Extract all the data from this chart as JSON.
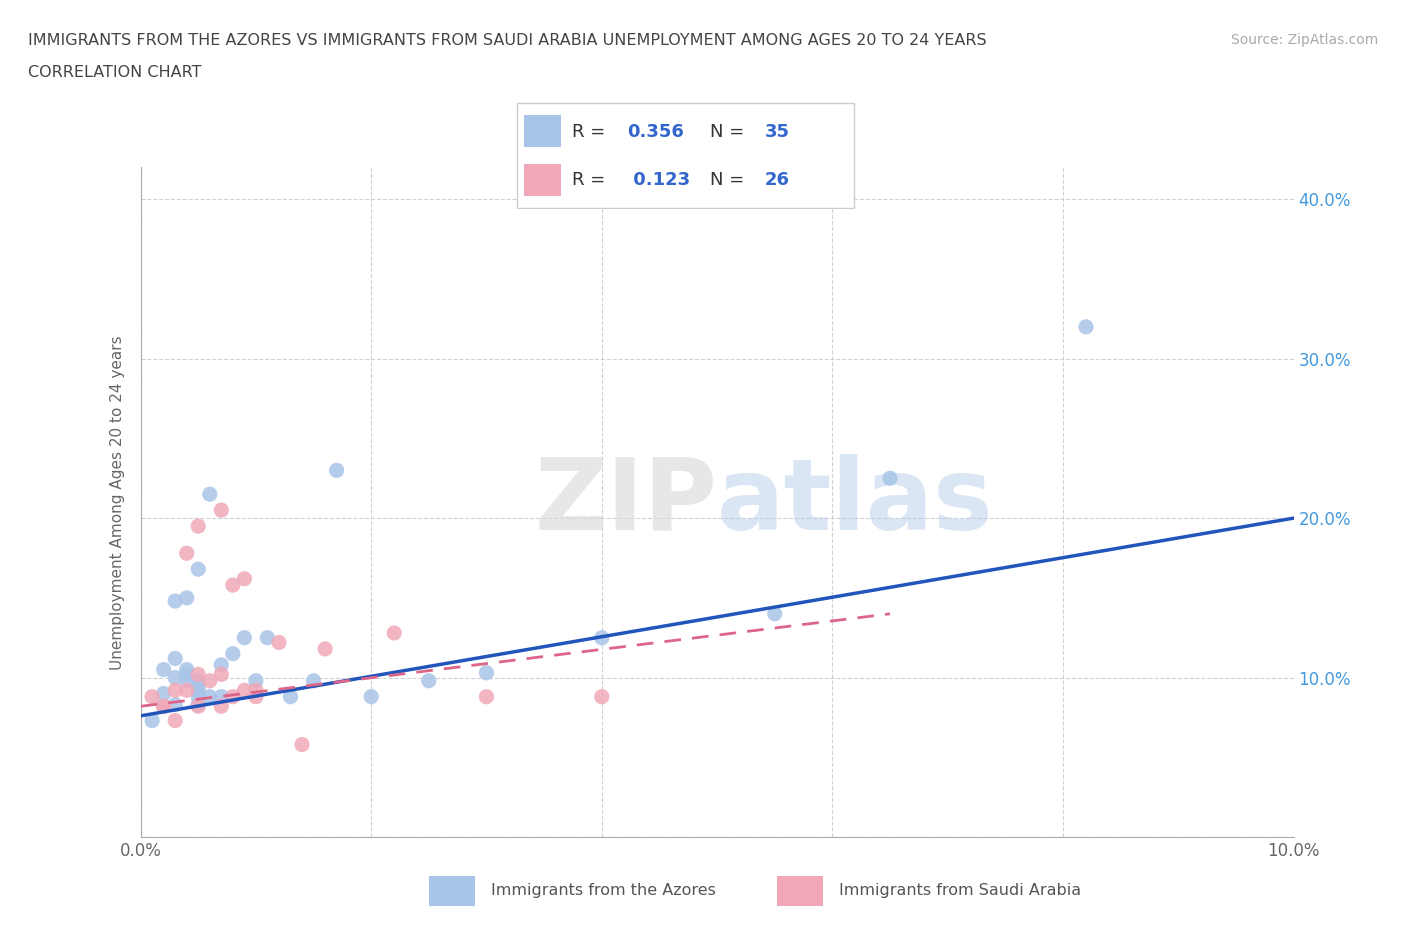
{
  "title_line1": "IMMIGRANTS FROM THE AZORES VS IMMIGRANTS FROM SAUDI ARABIA UNEMPLOYMENT AMONG AGES 20 TO 24 YEARS",
  "title_line2": "CORRELATION CHART",
  "source_text": "Source: ZipAtlas.com",
  "ylabel": "Unemployment Among Ages 20 to 24 years",
  "watermark_zip": "ZIP",
  "watermark_atlas": "atlas",
  "azores_R": 0.356,
  "azores_N": 35,
  "saudi_R": 0.123,
  "saudi_N": 26,
  "azores_color": "#a8c4e8",
  "saudi_color": "#f0a8b8",
  "azores_line_color": "#2255bb",
  "saudi_line_color": "#dd6688",
  "background_color": "#ffffff",
  "grid_color": "#cccccc",
  "title_color": "#444444",
  "axis_label_color": "#666666",
  "right_tick_color": "#4499dd",
  "source_color": "#aaaaaa",
  "xlim": [
    0.0,
    0.1
  ],
  "ylim": [
    0.0,
    0.42
  ],
  "x_ticks": [
    0.0,
    0.02,
    0.04,
    0.06,
    0.08,
    0.1
  ],
  "y_ticks": [
    0.0,
    0.1,
    0.2,
    0.3,
    0.4
  ],
  "azores_x": [
    0.001,
    0.002,
    0.002,
    0.003,
    0.003,
    0.003,
    0.003,
    0.004,
    0.004,
    0.004,
    0.004,
    0.005,
    0.005,
    0.005,
    0.005,
    0.005,
    0.005,
    0.006,
    0.006,
    0.007,
    0.007,
    0.008,
    0.009,
    0.01,
    0.011,
    0.013,
    0.015,
    0.017,
    0.02,
    0.025,
    0.03,
    0.04,
    0.055,
    0.065,
    0.082
  ],
  "azores_y": [
    0.073,
    0.09,
    0.105,
    0.083,
    0.1,
    0.112,
    0.148,
    0.098,
    0.102,
    0.105,
    0.15,
    0.083,
    0.088,
    0.092,
    0.095,
    0.098,
    0.168,
    0.088,
    0.215,
    0.088,
    0.108,
    0.115,
    0.125,
    0.098,
    0.125,
    0.088,
    0.098,
    0.23,
    0.088,
    0.098,
    0.103,
    0.125,
    0.14,
    0.225,
    0.32
  ],
  "saudi_x": [
    0.001,
    0.002,
    0.002,
    0.003,
    0.003,
    0.004,
    0.004,
    0.005,
    0.005,
    0.005,
    0.006,
    0.007,
    0.007,
    0.007,
    0.008,
    0.008,
    0.009,
    0.009,
    0.01,
    0.01,
    0.012,
    0.014,
    0.016,
    0.022,
    0.03,
    0.04
  ],
  "saudi_y": [
    0.088,
    0.082,
    0.082,
    0.073,
    0.092,
    0.092,
    0.178,
    0.082,
    0.102,
    0.195,
    0.098,
    0.082,
    0.102,
    0.205,
    0.088,
    0.158,
    0.092,
    0.162,
    0.092,
    0.088,
    0.122,
    0.058,
    0.118,
    0.128,
    0.088,
    0.088
  ],
  "azores_line_x0": 0.0,
  "azores_line_y0": 0.076,
  "azores_line_x1": 0.1,
  "azores_line_y1": 0.2,
  "saudi_line_x0": 0.0,
  "saudi_line_y0": 0.082,
  "saudi_line_x1": 0.065,
  "saudi_line_y1": 0.14
}
